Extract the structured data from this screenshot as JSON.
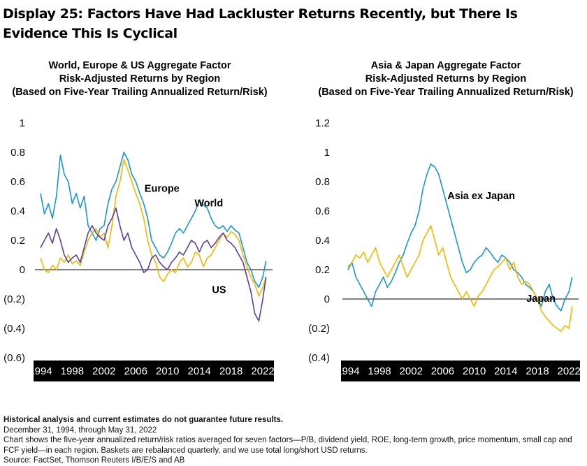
{
  "title": "Display 25: Factors Have Had Lackluster Returns Recently, but There Is Evidence This Is Cyclical",
  "colors": {
    "blue": "#1a96cf",
    "yellow": "#f5b800",
    "purple": "#5b3fa0",
    "axis_bar": "#000000"
  },
  "footer": {
    "disclaimer": "Historical analysis and current estimates do not guarantee future results.",
    "period": "December 31, 1994, through May 31, 2022",
    "note": "Chart shows the five-year annualized return/risk ratios averaged for seven factors—P/B, dividend yield, ROE, long-term growth, price momentum, small cap and FCF yield—in each region.  Baskets are rebalanced quarterly, and we use total long/short USD returns.",
    "source": "Source:  FactSet, Thomson Reuters I/B/E/S and AB"
  },
  "chart_data": [
    {
      "type": "line",
      "title_lines": [
        "World, Europe & US Aggregate Factor",
        "Risk-Adjusted Returns by Region",
        "(Based on Five-Year Trailing Annualized Return/Risk)"
      ],
      "xlim": [
        1993.3,
        2023.4
      ],
      "ylim": [
        -0.6,
        1.0
      ],
      "yticks": [
        1,
        0.8,
        0.6,
        0.4,
        0.2,
        0,
        -0.2,
        -0.4,
        -0.6
      ],
      "ytick_labels": [
        "1",
        "0.8",
        "0.6",
        "0.4",
        "0.2",
        "0",
        "(0.2)",
        "(0.4)",
        "(0.6)"
      ],
      "xticks": [
        1994,
        1998,
        2002,
        2006,
        2010,
        2014,
        2018,
        2022
      ],
      "xtick_labels": [
        "1994",
        "1998",
        "2002",
        "2006",
        "2010",
        "2014",
        "2018",
        "2022"
      ],
      "series": [
        {
          "name": "World",
          "color_key": "blue",
          "label_at": [
            2013.4,
            0.43
          ],
          "x": [
            1994.0,
            1994.5,
            1995.0,
            1995.5,
            1996.0,
            1996.5,
            1997.0,
            1997.5,
            1998.0,
            1998.5,
            1999.0,
            1999.5,
            2000.0,
            2000.5,
            2001.0,
            2001.5,
            2002.0,
            2002.5,
            2003.0,
            2003.5,
            2004.0,
            2004.5,
            2005.0,
            2005.5,
            2006.0,
            2006.5,
            2007.0,
            2007.5,
            2008.0,
            2008.5,
            2009.0,
            2009.5,
            2010.0,
            2010.5,
            2011.0,
            2011.5,
            2012.0,
            2012.5,
            2013.0,
            2013.5,
            2014.0,
            2014.5,
            2015.0,
            2015.5,
            2016.0,
            2016.5,
            2017.0,
            2017.5,
            2018.0,
            2018.5,
            2019.0,
            2019.5,
            2020.0,
            2020.5,
            2021.0,
            2021.5,
            2022.0,
            2022.4
          ],
          "y": [
            0.52,
            0.38,
            0.45,
            0.35,
            0.5,
            0.78,
            0.65,
            0.6,
            0.45,
            0.52,
            0.42,
            0.5,
            0.3,
            0.25,
            0.2,
            0.28,
            0.3,
            0.45,
            0.55,
            0.6,
            0.7,
            0.8,
            0.75,
            0.65,
            0.6,
            0.52,
            0.45,
            0.35,
            0.2,
            0.15,
            0.1,
            0.08,
            0.12,
            0.18,
            0.25,
            0.28,
            0.25,
            0.3,
            0.35,
            0.4,
            0.47,
            0.44,
            0.42,
            0.35,
            0.3,
            0.28,
            0.3,
            0.26,
            0.3,
            0.27,
            0.25,
            0.15,
            0.05,
            0.0,
            -0.08,
            -0.12,
            -0.05,
            0.06
          ]
        },
        {
          "name": "Europe",
          "color_key": "yellow",
          "label_at": [
            2007.1,
            0.53
          ],
          "x": [
            1994.0,
            1994.5,
            1995.0,
            1995.5,
            1996.0,
            1996.5,
            1997.0,
            1997.5,
            1998.0,
            1998.5,
            1999.0,
            1999.5,
            2000.0,
            2000.5,
            2001.0,
            2001.5,
            2002.0,
            2002.5,
            2003.0,
            2003.5,
            2004.0,
            2004.5,
            2005.0,
            2005.5,
            2006.0,
            2006.5,
            2007.0,
            2007.5,
            2008.0,
            2008.5,
            2009.0,
            2009.5,
            2010.0,
            2010.5,
            2011.0,
            2011.5,
            2012.0,
            2012.5,
            2013.0,
            2013.5,
            2014.0,
            2014.5,
            2015.0,
            2015.5,
            2016.0,
            2016.5,
            2017.0,
            2017.5,
            2018.0,
            2018.5,
            2019.0,
            2019.5,
            2020.0,
            2020.5,
            2021.0,
            2021.5,
            2022.0,
            2022.4
          ],
          "y": [
            0.08,
            0.0,
            -0.02,
            0.03,
            0.0,
            0.08,
            0.05,
            0.1,
            0.04,
            0.06,
            0.03,
            0.12,
            0.2,
            0.25,
            0.28,
            0.22,
            0.25,
            0.15,
            0.3,
            0.5,
            0.6,
            0.75,
            0.68,
            0.6,
            0.52,
            0.45,
            0.35,
            0.2,
            0.1,
            0.05,
            -0.05,
            -0.08,
            -0.03,
            0.0,
            -0.02,
            0.05,
            0.08,
            0.02,
            0.05,
            0.12,
            0.1,
            0.02,
            0.08,
            0.1,
            0.15,
            0.2,
            0.25,
            0.22,
            0.26,
            0.24,
            0.2,
            0.1,
            0.02,
            -0.05,
            -0.1,
            -0.18,
            -0.12,
            -0.05
          ]
        },
        {
          "name": "US",
          "color_key": "purple",
          "label_at": [
            2015.6,
            -0.16
          ],
          "x": [
            1994.0,
            1994.5,
            1995.0,
            1995.5,
            1996.0,
            1996.5,
            1997.0,
            1997.5,
            1998.0,
            1998.5,
            1999.0,
            1999.5,
            2000.0,
            2000.5,
            2001.0,
            2001.5,
            2002.0,
            2002.5,
            2003.0,
            2003.5,
            2004.0,
            2004.5,
            2005.0,
            2005.5,
            2006.0,
            2006.5,
            2007.0,
            2007.5,
            2008.0,
            2008.5,
            2009.0,
            2009.5,
            2010.0,
            2010.5,
            2011.0,
            2011.5,
            2012.0,
            2012.5,
            2013.0,
            2013.5,
            2014.0,
            2014.5,
            2015.0,
            2015.5,
            2016.0,
            2016.5,
            2017.0,
            2017.5,
            2018.0,
            2018.5,
            2019.0,
            2019.5,
            2020.0,
            2020.5,
            2021.0,
            2021.5,
            2022.0,
            2022.4
          ],
          "y": [
            0.15,
            0.2,
            0.25,
            0.18,
            0.28,
            0.2,
            0.1,
            0.05,
            0.08,
            0.1,
            0.05,
            0.15,
            0.25,
            0.3,
            0.25,
            0.22,
            0.2,
            0.3,
            0.35,
            0.42,
            0.3,
            0.2,
            0.25,
            0.15,
            0.1,
            0.05,
            -0.02,
            0.0,
            0.08,
            0.1,
            0.05,
            0.02,
            0.0,
            0.05,
            0.08,
            0.12,
            0.1,
            0.15,
            0.2,
            0.18,
            0.12,
            0.18,
            0.2,
            0.15,
            0.18,
            0.22,
            0.25,
            0.2,
            0.18,
            0.15,
            0.1,
            0.05,
            -0.05,
            -0.15,
            -0.3,
            -0.35,
            -0.2,
            -0.05
          ]
        }
      ]
    },
    {
      "type": "line",
      "title_lines": [
        "Asia & Japan Aggregate Factor",
        "Risk-Adjusted Returns by Region",
        "(Based on Five-Year Trailing Annualized Return/Risk)"
      ],
      "xlim": [
        1993.3,
        2023.4
      ],
      "ylim": [
        -0.4,
        1.2
      ],
      "yticks": [
        1.2,
        1,
        0.8,
        0.6,
        0.4,
        0.2,
        0,
        -0.2,
        -0.4
      ],
      "ytick_labels": [
        "1.2",
        "1",
        "0.8",
        "0.6",
        "0.4",
        "0.2",
        "0",
        "(0.2)",
        "(0.4)"
      ],
      "xticks": [
        1994,
        1998,
        2002,
        2006,
        2010,
        2014,
        2018,
        2022
      ],
      "xtick_labels": [
        "1994",
        "1998",
        "2002",
        "2006",
        "2010",
        "2014",
        "2018",
        "2022"
      ],
      "series": [
        {
          "name": "Asia ex Japan",
          "color_key": "blue",
          "label_at": [
            2006.6,
            0.68
          ],
          "x": [
            1994.0,
            1994.5,
            1995.0,
            1995.5,
            1996.0,
            1996.5,
            1997.0,
            1997.5,
            1998.0,
            1998.5,
            1999.0,
            1999.5,
            2000.0,
            2000.5,
            2001.0,
            2001.5,
            2002.0,
            2002.5,
            2003.0,
            2003.5,
            2004.0,
            2004.5,
            2005.0,
            2005.5,
            2006.0,
            2006.5,
            2007.0,
            2007.5,
            2008.0,
            2008.5,
            2009.0,
            2009.5,
            2010.0,
            2010.5,
            2011.0,
            2011.5,
            2012.0,
            2012.5,
            2013.0,
            2013.5,
            2014.0,
            2014.5,
            2015.0,
            2015.5,
            2016.0,
            2016.5,
            2017.0,
            2017.5,
            2018.0,
            2018.5,
            2019.0,
            2019.5,
            2020.0,
            2020.5,
            2021.0,
            2021.5,
            2022.0,
            2022.4
          ],
          "y": [
            0.2,
            0.25,
            0.15,
            0.1,
            0.05,
            0.0,
            -0.05,
            0.05,
            0.1,
            0.15,
            0.08,
            0.12,
            0.18,
            0.25,
            0.3,
            0.38,
            0.45,
            0.5,
            0.6,
            0.75,
            0.85,
            0.92,
            0.9,
            0.85,
            0.75,
            0.65,
            0.55,
            0.45,
            0.35,
            0.25,
            0.18,
            0.2,
            0.25,
            0.28,
            0.3,
            0.35,
            0.32,
            0.28,
            0.25,
            0.3,
            0.28,
            0.25,
            0.2,
            0.18,
            0.15,
            0.1,
            0.08,
            0.05,
            0.0,
            -0.05,
            0.05,
            0.1,
            0.0,
            -0.05,
            -0.08,
            0.0,
            0.05,
            0.15
          ]
        },
        {
          "name": "Japan",
          "color_key": "yellow",
          "label_at": [
            2016.6,
            -0.02
          ],
          "x": [
            1994.0,
            1994.5,
            1995.0,
            1995.5,
            1996.0,
            1996.5,
            1997.0,
            1997.5,
            1998.0,
            1998.5,
            1999.0,
            1999.5,
            2000.0,
            2000.5,
            2001.0,
            2001.5,
            2002.0,
            2002.5,
            2003.0,
            2003.5,
            2004.0,
            2004.5,
            2005.0,
            2005.5,
            2006.0,
            2006.5,
            2007.0,
            2007.5,
            2008.0,
            2008.5,
            2009.0,
            2009.5,
            2010.0,
            2010.5,
            2011.0,
            2011.5,
            2012.0,
            2012.5,
            2013.0,
            2013.5,
            2014.0,
            2014.5,
            2015.0,
            2015.5,
            2016.0,
            2016.5,
            2017.0,
            2017.5,
            2018.0,
            2018.5,
            2019.0,
            2019.5,
            2020.0,
            2020.5,
            2021.0,
            2021.5,
            2022.0,
            2022.4
          ],
          "y": [
            0.22,
            0.25,
            0.3,
            0.28,
            0.32,
            0.25,
            0.3,
            0.35,
            0.25,
            0.2,
            0.15,
            0.2,
            0.25,
            0.3,
            0.22,
            0.15,
            0.2,
            0.25,
            0.3,
            0.4,
            0.45,
            0.5,
            0.4,
            0.3,
            0.35,
            0.25,
            0.15,
            0.1,
            0.05,
            0.0,
            0.05,
            0.0,
            -0.05,
            0.02,
            0.05,
            0.1,
            0.15,
            0.2,
            0.22,
            0.25,
            0.28,
            0.2,
            0.25,
            0.15,
            0.1,
            0.12,
            0.1,
            0.05,
            0.0,
            -0.08,
            -0.12,
            -0.15,
            -0.18,
            -0.2,
            -0.22,
            -0.18,
            -0.2,
            -0.05
          ]
        }
      ]
    }
  ]
}
